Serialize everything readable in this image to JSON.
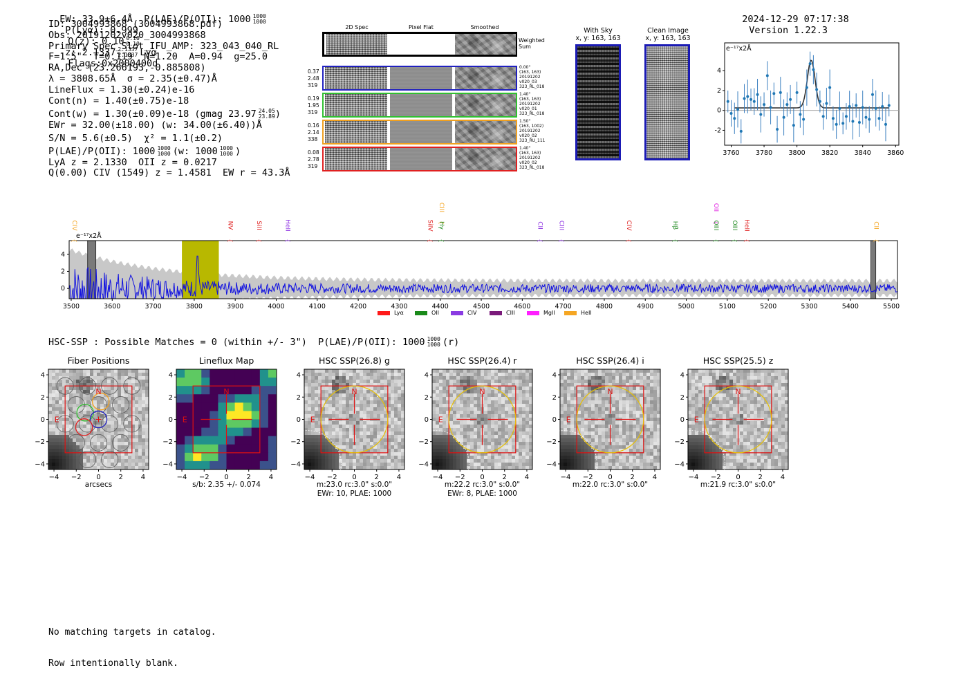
{
  "header": {
    "summary": "EW: 33.9±6.4Å  P(LAE)/P(OII): 1000",
    "summary_frac_num": "1000",
    "summary_frac_den": "1000",
    "plya": "P(Lyα): 0.999",
    "qz": "Q(z): 0.10",
    "qz_num": "0.10",
    "qz_den": "0.10",
    "z": "z: 2.1337",
    "z_num": "2.1337",
    "z_den": "2.1337",
    "z_line": "Lyα",
    "flags": "Flags:0x2000400d",
    "timestamp": "2024-12-29 07:17:38",
    "version": "Version 1.22.3"
  },
  "info": {
    "id": "ID: 3004993868 (3004993868.pdf)",
    "obs": "Obs: 20191202v020_3004993868",
    "primary": "Primary Spec_Slot_IFU_AMP: 323_043_040_RL",
    "fit": "F=1.5\"  T=0.119  N=1.20  A=0.94  g=25.0",
    "radec": "RA,Dec (23.266193,-0.885808)",
    "lambda": "λ = 3808.65Å  σ = 2.35(±0.47)Å",
    "lineflux": "LineFlux = 1.30(±0.24)e-16",
    "contn": "Cont(n) = 1.40(±0.75)e-18",
    "contw": "Cont(w) = 1.30(±0.09)e-18 (gmag 23.97",
    "contw_up": "24.05",
    "contw_dn": "23.89",
    "ewr": "EWr = 32.00(±18.00) (w: 34.00(±6.40))Å",
    "sn": "S/N = 5.6(±0.5)  χ² = 1.1(±0.2)",
    "plae": "P(LAE)/P(OII): 1000",
    "plae_num": "1000",
    "plae_den": "1000",
    "plae_w": "(w: 1000",
    "plae_w_num": "1000",
    "plae_w_den": "1000",
    "lya": "LyA z = 2.1330  OII z = 0.0217",
    "civ": "Q(0.00) CIV (1549) z = 1.4581  EW r = 43.3Å"
  },
  "cutouts": {
    "headers": [
      "2D Spec",
      "Pixel Flat",
      "Smoothed"
    ],
    "weighted_label": "Weighted\nSum",
    "rows": [
      {
        "stats": [
          "0.37",
          "2.48",
          "319"
        ],
        "meta": "0.00\"\n(163, 163)\n20191202\nv020_03\n323_RL_018",
        "color": "#2020c0"
      },
      {
        "stats": [
          "0.19",
          "1.95",
          "319"
        ],
        "meta": "1.40\"\n(163, 163)\n20191202\nv020_01\n323_RL_018",
        "color": "#30c030"
      },
      {
        "stats": [
          "0.16",
          "2.14",
          "338"
        ],
        "meta": "1.50\"\n(163, 1002)\n20191202\nv020_02\n323_RU_111",
        "color": "#f0a020"
      },
      {
        "stats": [
          "0.08",
          "2.78",
          "319"
        ],
        "meta": "1.40\"\n(163, 163)\n20191202\nv020_02\n323_RL_018",
        "color": "#e02020"
      }
    ]
  },
  "stamps": {
    "sky_title": "With Sky",
    "sky_coord": "x, y: 163, 163",
    "clean_title": "Clean Image",
    "clean_coord": "x, y: 163, 163"
  },
  "chart_data": [
    {
      "type": "line",
      "name": "zoom-spectrum",
      "ylabel": "e⁻¹⁷x2Å",
      "xlim": [
        3756,
        3862
      ],
      "ylim": [
        -3.5,
        6.8
      ],
      "x_ticks": [
        3760,
        3780,
        3800,
        3820,
        3840,
        3860
      ],
      "y_ticks": [
        -2,
        0,
        2,
        4
      ],
      "x": [
        3758,
        3760,
        3762,
        3764,
        3766,
        3768,
        3770,
        3772,
        3774,
        3776,
        3778,
        3780,
        3782,
        3784,
        3786,
        3788,
        3790,
        3792,
        3794,
        3796,
        3798,
        3800,
        3802,
        3804,
        3806,
        3808,
        3810,
        3812,
        3814,
        3816,
        3818,
        3820,
        3822,
        3824,
        3826,
        3828,
        3830,
        3832,
        3834,
        3836,
        3838,
        3840,
        3842,
        3844,
        3846,
        3848,
        3850,
        3852,
        3854,
        3856
      ],
      "y": [
        0.9,
        -0.3,
        -0.8,
        0.1,
        -2.1,
        1.2,
        1.4,
        1.1,
        0.9,
        1.6,
        -0.4,
        0.6,
        3.5,
        0.3,
        1.7,
        -1.9,
        1.8,
        -0.7,
        0.6,
        1.1,
        -1.5,
        1.8,
        -0.4,
        -0.9,
        2.3,
        4.7,
        4.1,
        2.1,
        0.9,
        -0.6,
        0.7,
        2.3,
        -0.8,
        -1.4,
        0.2,
        -1.3,
        -0.6,
        0.4,
        -1.1,
        0.5,
        -1.2,
        0.3,
        -0.7,
        -0.9,
        1.6,
        0.2,
        -0.8,
        0.4,
        -1.4,
        0.5
      ],
      "fit": {
        "center": 3808.65,
        "sigma": 2.35,
        "amplitude": 4.8,
        "continuum": 0.25
      }
    },
    {
      "type": "line",
      "name": "full-spectrum",
      "ylabel": "e⁻¹⁷x2Å",
      "xlim": [
        3495,
        5515
      ],
      "ylim": [
        -1.2,
        5.6
      ],
      "x_ticks": [
        3500,
        3600,
        3700,
        3800,
        3900,
        4000,
        4100,
        4200,
        4300,
        4400,
        4500,
        4600,
        4700,
        4800,
        4900,
        5000,
        5100,
        5200,
        5300,
        5400,
        5500
      ],
      "y_ticks": [
        0,
        2,
        4
      ],
      "highlight_ranges": [
        [
          3770,
          3860
        ]
      ],
      "masked_ranges": [
        [
          3540,
          3560
        ],
        [
          5450,
          5462
        ]
      ],
      "line_markers": [
        {
          "label": "CIV",
          "x": 3500,
          "color": "#f5a623",
          "row": "mid"
        },
        {
          "label": "NV",
          "x": 3880,
          "color": "#e02020",
          "row": "low"
        },
        {
          "label": "SiII",
          "x": 3950,
          "color": "#e02020",
          "row": "low"
        },
        {
          "label": "HeII",
          "x": 4020,
          "color": "#8a2be2",
          "row": "low"
        },
        {
          "label": "SiIV",
          "x": 4368,
          "color": "#e02020",
          "row": "low"
        },
        {
          "label": "CIII",
          "x": 4395,
          "color": "#f5a623",
          "row": "high"
        },
        {
          "label": "Hγ",
          "x": 4395,
          "color": "#228b22",
          "row": "low"
        },
        {
          "label": "CII",
          "x": 4636,
          "color": "#8a2be2",
          "row": "low"
        },
        {
          "label": "CIII",
          "x": 4688,
          "color": "#8a2be2",
          "row": "low"
        },
        {
          "label": "CIV",
          "x": 4852,
          "color": "#e02020",
          "row": "low"
        },
        {
          "label": "Hβ",
          "x": 4965,
          "color": "#228b22",
          "row": "low"
        },
        {
          "label": "OII",
          "x": 5065,
          "color": "#e020e0",
          "row": "high"
        },
        {
          "label": "OIII",
          "x": 5065,
          "color": "#228b22",
          "row": "low"
        },
        {
          "label": "OIII",
          "x": 5110,
          "color": "#228b22",
          "row": "low"
        },
        {
          "label": "HeII",
          "x": 5140,
          "color": "#e02020",
          "row": "low"
        },
        {
          "label": "CII",
          "x": 5455,
          "color": "#f5a623",
          "row": "low"
        }
      ],
      "legend": [
        {
          "label": "Lyα",
          "color": "#ff1a1a"
        },
        {
          "label": "OII",
          "color": "#1a8a1a"
        },
        {
          "label": "CIV",
          "color": "#8a3be2"
        },
        {
          "label": "CIII",
          "color": "#7a1a7a"
        },
        {
          "label": "MgII",
          "color": "#ff20ff"
        },
        {
          "label": "HeII",
          "color": "#f5a623"
        }
      ]
    }
  ],
  "hsc": {
    "summary": "HSC-SSP : Possible Matches = 0 (within +/- 3\")  P(LAE)/P(OII): 1000",
    "summary_num": "1000",
    "summary_den": "1000",
    "summary_suffix": "(r)"
  },
  "panels": [
    {
      "title": "Fiber Positions",
      "caption1": "arcsecs",
      "caption2": "",
      "kind": "fiber"
    },
    {
      "title": "Lineflux Map",
      "caption1": "s/b: 2.35 +/- 0.074",
      "caption2": "",
      "kind": "lineflux"
    },
    {
      "title": "HSC SSP(26.8) g",
      "caption1": "m:23.0 rc:3.0\"  s:0.0\"",
      "caption2": "EWr: 10, PLAE: 1000",
      "kind": "hsc"
    },
    {
      "title": "HSC SSP(26.4) r",
      "caption1": "m:22.2 rc:3.0\"  s:0.0\"",
      "caption2": "EWr: 8, PLAE: 1000",
      "kind": "hsc"
    },
    {
      "title": "HSC SSP(26.4) i",
      "caption1": "m:22.0 rc:3.0\"  s:0.0\"",
      "caption2": "",
      "kind": "hsc"
    },
    {
      "title": "HSC SSP(25.5) z",
      "caption1": "m:21.9 rc:3.0\"  s:0.0\"",
      "caption2": "",
      "kind": "hsc"
    }
  ],
  "panel_axis": {
    "x_ticks": [
      "−4",
      "−2",
      "0",
      "2",
      "4"
    ],
    "y_ticks": [
      "4",
      "2",
      "0",
      "−2",
      "−4"
    ],
    "north": "N",
    "east": "E"
  },
  "footer": {
    "line1": "No matching targets in catalog.",
    "line2": "Row intentionally blank."
  }
}
